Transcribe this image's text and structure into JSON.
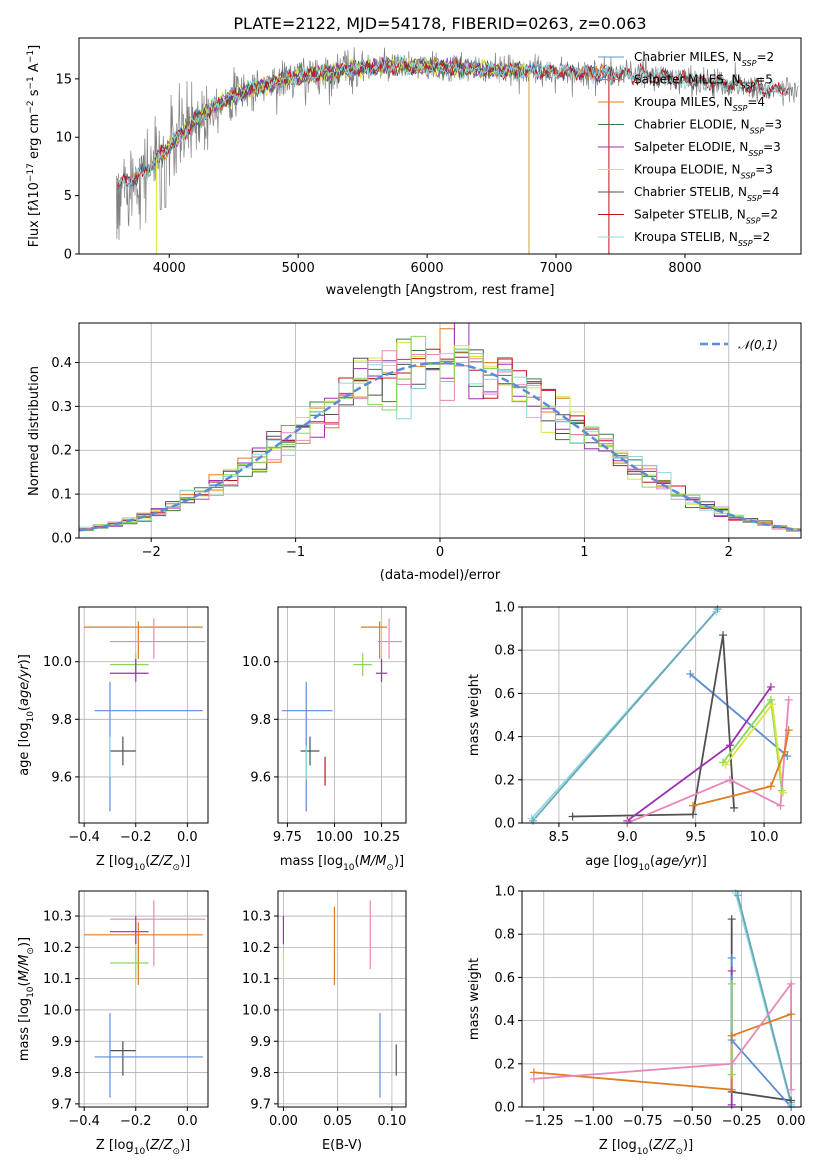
{
  "title": "PLATE=2122, MJD=54178, FIBERID=0263, z=0.063",
  "colors": {
    "Chabrier MILES": "#5b9bd5",
    "Salpeter MILES": "#6e8fd6",
    "Kroupa MILES": "#e07b20",
    "Chabrier ELODIE": "#3a7d44",
    "Salpeter ELODIE": "#9b30b0",
    "Kroupa ELODIE": "#d6e83a",
    "Chabrier STELIB": "#505050",
    "Salpeter STELIB": "#c0141c",
    "Kroupa STELIB": "#8fd8e0",
    "data": "#808080",
    "normal": "#5b8cd6",
    "pink": "#e887bc",
    "green": "#88d85a"
  },
  "chart_data": [
    {
      "id": "spectrum",
      "type": "line",
      "xlabel": "wavelength [Angstrom, rest frame]",
      "ylabel": "Flux [fλ10⁻¹⁷ erg cm⁻² s⁻¹ A⁻¹]",
      "xlim": [
        3300,
        8900
      ],
      "ylim": [
        0,
        18.5
      ],
      "xticks": [
        4000,
        5000,
        6000,
        7000,
        8000
      ],
      "yticks": [
        0,
        5,
        10,
        15
      ],
      "grid": false,
      "legend_position": "top-right",
      "continuum_x": [
        3600,
        3800,
        4000,
        4200,
        4400,
        4600,
        4800,
        5000,
        5200,
        5400,
        5600,
        5800,
        6000,
        6200,
        6400,
        6600,
        6800,
        7000,
        7200,
        7400,
        7600,
        7800,
        8000,
        8200,
        8400,
        8600,
        8800
      ],
      "continuum_y": [
        5.8,
        7.0,
        9.2,
        11.5,
        13.0,
        14.0,
        14.6,
        15.2,
        15.5,
        15.8,
        16.0,
        16.1,
        16.0,
        15.9,
        15.8,
        15.7,
        15.7,
        15.6,
        15.5,
        15.4,
        15.4,
        15.2,
        14.9,
        14.7,
        14.5,
        14.2,
        14.0
      ],
      "series": [
        {
          "name": "Chabrier MILES",
          "nssp": "2",
          "xrange": [
            3600,
            7400
          ]
        },
        {
          "name": "Salpeter MILES",
          "nssp": "5",
          "xrange": [
            3600,
            7400
          ]
        },
        {
          "name": "Kroupa MILES",
          "nssp": "4",
          "xrange": [
            3600,
            7400
          ]
        },
        {
          "name": "Chabrier ELODIE",
          "nssp": "3",
          "xrange": [
            3900,
            6800
          ]
        },
        {
          "name": "Salpeter ELODIE",
          "nssp": "3",
          "xrange": [
            3900,
            6800
          ]
        },
        {
          "name": "Kroupa ELODIE",
          "nssp": "3",
          "xrange": [
            3900,
            6800
          ]
        },
        {
          "name": "Chabrier STELIB",
          "nssp": "4",
          "xrange": [
            3600,
            8800
          ]
        },
        {
          "name": "Salpeter STELIB",
          "nssp": "2",
          "xrange": [
            3600,
            8800
          ]
        },
        {
          "name": "Kroupa STELIB",
          "nssp": "2",
          "xrange": [
            3600,
            8800
          ]
        }
      ]
    },
    {
      "id": "residuals",
      "type": "line",
      "xlabel": "(data-model)/error",
      "ylabel": "Normed distribution",
      "xlim": [
        -2.5,
        2.5
      ],
      "ylim": [
        0,
        0.49
      ],
      "xticks": [
        -2,
        -1,
        0,
        1,
        2
      ],
      "yticks": [
        0.0,
        0.1,
        0.2,
        0.3,
        0.4
      ],
      "grid": true,
      "legend_position": "top-right",
      "legend_label": "𝒩(0,1)",
      "bin_width": 0.1
    },
    {
      "id": "age-vs-Z",
      "type": "scatter",
      "xlabel": "Z [log₁₀(Z/Z⊙)]",
      "ylabel": "age  [log₁₀(age/yr)]",
      "xlim": [
        -0.42,
        0.08
      ],
      "ylim": [
        9.44,
        10.19
      ],
      "xticks": [
        -0.4,
        -0.2,
        0.0
      ],
      "yticks": [
        9.6,
        9.8,
        10.0
      ],
      "grid": true,
      "points": [
        {
          "color": "#e07b20",
          "x": -0.19,
          "xerr": [
            0.21,
            0.25
          ],
          "y": 10.12,
          "yerr": [
            0.11,
            0.02
          ]
        },
        {
          "color": "#e887bc",
          "x": -0.13,
          "xerr": [
            0.17,
            0.2
          ],
          "y": 10.07,
          "yerr": [
            0.06,
            0.08
          ]
        },
        {
          "color": "#88d85a",
          "x": -0.2,
          "xerr": [
            0.1,
            0.05
          ],
          "y": 9.99,
          "yerr": [
            0.04,
            0.04
          ]
        },
        {
          "color": "#9b30b0",
          "x": -0.2,
          "xerr": [
            0.1,
            0.05
          ],
          "y": 9.96,
          "yerr": [
            0.03,
            0.05
          ]
        },
        {
          "color": "#5b8cd6",
          "x": -0.3,
          "xerr": [
            0.06,
            0.36
          ],
          "y": 9.83,
          "yerr": [
            0.35,
            0.1
          ]
        },
        {
          "color": "#505050",
          "x": -0.25,
          "xerr": [
            0.05,
            0.05
          ],
          "y": 9.69,
          "yerr": [
            0.05,
            0.05
          ]
        },
        {
          "color": "#8fd8e0",
          "x": -0.3,
          "xerr": [
            0.0,
            0.0
          ],
          "y": 9.7,
          "yerr": [
            0.1,
            0.04
          ]
        }
      ]
    },
    {
      "id": "age-vs-mass",
      "type": "scatter",
      "xlabel": "mass [log₁₀(M/M⊙)]",
      "ylabel": "",
      "xlim": [
        9.7,
        10.38
      ],
      "ylim": [
        9.44,
        10.19
      ],
      "xticks": [
        9.75,
        10.0,
        10.25
      ],
      "yticks": [
        9.6,
        9.8,
        10.0
      ],
      "grid": true,
      "points": [
        {
          "color": "#e07b20",
          "x": 10.24,
          "xerr": [
            0.1,
            0.04
          ],
          "y": 10.12,
          "yerr": [
            0.11,
            0.02
          ]
        },
        {
          "color": "#e887bc",
          "x": 10.29,
          "xerr": [
            0.06,
            0.07
          ],
          "y": 10.07,
          "yerr": [
            0.06,
            0.08
          ]
        },
        {
          "color": "#88d85a",
          "x": 10.15,
          "xerr": [
            0.05,
            0.05
          ],
          "y": 9.99,
          "yerr": [
            0.04,
            0.04
          ]
        },
        {
          "color": "#9b30b0",
          "x": 10.25,
          "xerr": [
            0.03,
            0.03
          ],
          "y": 9.96,
          "yerr": [
            0.03,
            0.05
          ]
        },
        {
          "color": "#5b8cd6",
          "x": 9.85,
          "xerr": [
            0.13,
            0.14
          ],
          "y": 9.83,
          "yerr": [
            0.35,
            0.1
          ]
        },
        {
          "color": "#505050",
          "x": 9.87,
          "xerr": [
            0.05,
            0.05
          ],
          "y": 9.69,
          "yerr": [
            0.05,
            0.05
          ]
        },
        {
          "color": "#c0141c",
          "x": 9.95,
          "xerr": [
            0.0,
            0.0
          ],
          "y": 9.62,
          "yerr": [
            0.05,
            0.05
          ]
        },
        {
          "color": "#8fd8e0",
          "x": 9.85,
          "xerr": [
            0.0,
            0.0
          ],
          "y": 9.67,
          "yerr": [
            0.08,
            0.04
          ]
        }
      ]
    },
    {
      "id": "weight-vs-age",
      "type": "line",
      "xlabel": "age  [log₁₀(age/yr)]",
      "ylabel": "mass weight",
      "xlim": [
        8.23,
        10.27
      ],
      "ylim": [
        0,
        1.0
      ],
      "xticks": [
        8.5,
        9.0,
        9.5,
        10.0
      ],
      "yticks": [
        0.0,
        0.2,
        0.4,
        0.6,
        0.8,
        1.0
      ],
      "grid": true,
      "series": [
        {
          "color": "#8fd8e0",
          "x": [
            8.3,
            9.65
          ],
          "y": [
            0.02,
            0.98
          ]
        },
        {
          "color": "#6aa8b8",
          "x": [
            8.31,
            9.66
          ],
          "y": [
            0.01,
            0.99
          ]
        },
        {
          "color": "#5b8cd6",
          "x": [
            9.46,
            10.17
          ],
          "y": [
            0.69,
            0.31
          ]
        },
        {
          "color": "#505050",
          "x": [
            8.6,
            9.48,
            9.7,
            9.78
          ],
          "y": [
            0.03,
            0.04,
            0.87,
            0.07
          ]
        },
        {
          "color": "#9b30b0",
          "x": [
            9.0,
            9.75,
            10.05
          ],
          "y": [
            0.01,
            0.36,
            0.63
          ]
        },
        {
          "color": "#88d85a",
          "x": [
            9.7,
            10.05,
            10.13
          ],
          "y": [
            0.28,
            0.57,
            0.15
          ]
        },
        {
          "color": "#d6e83a",
          "x": [
            9.72,
            10.06,
            10.14
          ],
          "y": [
            0.27,
            0.55,
            0.14
          ]
        },
        {
          "color": "#e887bc",
          "x": [
            9.0,
            9.75,
            10.12,
            10.18
          ],
          "y": [
            0.0,
            0.2,
            0.08,
            0.57
          ]
        },
        {
          "color": "#e07b20",
          "x": [
            9.48,
            10.05,
            10.15,
            10.18
          ],
          "y": [
            0.08,
            0.17,
            0.33,
            0.43
          ]
        }
      ]
    },
    {
      "id": "mass-vs-Z",
      "type": "scatter",
      "xlabel": "Z [log₁₀(Z/Z⊙)]",
      "ylabel": "mass [log₁₀(M/M⊙)]",
      "xlim": [
        -0.42,
        0.08
      ],
      "ylim": [
        9.69,
        10.38
      ],
      "xticks": [
        -0.4,
        -0.2,
        0.0
      ],
      "yticks": [
        9.7,
        9.8,
        9.9,
        10.0,
        10.1,
        10.2,
        10.3
      ],
      "grid": true,
      "points": [
        {
          "color": "#e887bc",
          "x": -0.13,
          "xerr": [
            0.17,
            0.2
          ],
          "y": 10.29,
          "yerr": [
            0.15,
            0.06
          ]
        },
        {
          "color": "#9b30b0",
          "x": -0.2,
          "xerr": [
            0.1,
            0.05
          ],
          "y": 10.25,
          "yerr": [
            0.04,
            0.05
          ]
        },
        {
          "color": "#e07b20",
          "x": -0.19,
          "xerr": [
            0.21,
            0.25
          ],
          "y": 10.24,
          "yerr": [
            0.16,
            0.04
          ]
        },
        {
          "color": "#88d85a",
          "x": -0.2,
          "xerr": [
            0.1,
            0.05
          ],
          "y": 10.15,
          "yerr": [
            0.05,
            0.05
          ]
        },
        {
          "color": "#505050",
          "x": -0.25,
          "xerr": [
            0.05,
            0.05
          ],
          "y": 9.87,
          "yerr": [
            0.08,
            0.03
          ]
        },
        {
          "color": "#5b8cd6",
          "x": -0.3,
          "xerr": [
            0.06,
            0.36
          ],
          "y": 9.85,
          "yerr": [
            0.13,
            0.14
          ]
        }
      ]
    },
    {
      "id": "mass-vs-EBV",
      "type": "scatter",
      "xlabel": "E(B-V)",
      "ylabel": "",
      "xlim": [
        -0.005,
        0.113
      ],
      "ylim": [
        9.69,
        10.38
      ],
      "xticks": [
        0.0,
        0.05,
        0.1
      ],
      "yticks": [
        9.7,
        9.8,
        9.9,
        10.0,
        10.1,
        10.2,
        10.3
      ],
      "grid": true,
      "points": [
        {
          "color": "#9b30b0",
          "x": 0.0,
          "xerr": [
            0,
            0
          ],
          "y": 10.25,
          "yerr": [
            0.04,
            0.05
          ]
        },
        {
          "color": "#d6e83a",
          "x": 0.0,
          "xerr": [
            0,
            0
          ],
          "y": 10.13,
          "yerr": [
            0.03,
            0.05
          ]
        },
        {
          "color": "#e07b20",
          "x": 0.047,
          "xerr": [
            0,
            0
          ],
          "y": 10.2,
          "yerr": [
            0.12,
            0.13
          ]
        },
        {
          "color": "#e887bc",
          "x": 0.08,
          "xerr": [
            0,
            0
          ],
          "y": 10.24,
          "yerr": [
            0.11,
            0.11
          ]
        },
        {
          "color": "#5b8cd6",
          "x": 0.089,
          "xerr": [
            0,
            0
          ],
          "y": 9.85,
          "yerr": [
            0.13,
            0.14
          ]
        },
        {
          "color": "#505050",
          "x": 0.104,
          "xerr": [
            0,
            0
          ],
          "y": 9.84,
          "yerr": [
            0.05,
            0.05
          ]
        }
      ]
    },
    {
      "id": "weight-vs-Z",
      "type": "line",
      "xlabel": "Z [log₁₀(Z/Z⊙)]",
      "ylabel": "mass weight",
      "xlim": [
        -1.36,
        0.05
      ],
      "ylim": [
        0,
        1.0
      ],
      "xticks": [
        -1.25,
        -1.0,
        -0.75,
        -0.5,
        -0.25,
        0.0
      ],
      "yticks": [
        0.0,
        0.2,
        0.4,
        0.6,
        0.8,
        1.0
      ],
      "grid": true,
      "series": [
        {
          "color": "#8fd8e0",
          "x": [
            -0.28,
            0.0
          ],
          "y": [
            0.99,
            0.01
          ]
        },
        {
          "color": "#6aa8b8",
          "x": [
            -0.27,
            0.0
          ],
          "y": [
            0.98,
            0.02
          ]
        },
        {
          "color": "#505050",
          "x": [
            -0.3,
            -0.3,
            0.0
          ],
          "y": [
            0.87,
            0.07,
            0.03
          ]
        },
        {
          "color": "#9b30b0",
          "x": [
            -0.3,
            -0.3
          ],
          "y": [
            0.63,
            0.01
          ]
        },
        {
          "color": "#5b8cd6",
          "x": [
            -0.3,
            -0.3,
            0.0
          ],
          "y": [
            0.69,
            0.31,
            0.0
          ]
        },
        {
          "color": "#e07b20",
          "x": [
            -1.3,
            -0.3,
            -0.3,
            0.0
          ],
          "y": [
            0.16,
            0.08,
            0.33,
            0.43
          ]
        },
        {
          "color": "#e887bc",
          "x": [
            -1.3,
            -0.3,
            0.0,
            0.0
          ],
          "y": [
            0.13,
            0.2,
            0.57,
            0.08
          ]
        },
        {
          "color": "#88d85a",
          "x": [
            -0.3,
            -0.3
          ],
          "y": [
            0.57,
            0.15
          ]
        }
      ]
    }
  ]
}
